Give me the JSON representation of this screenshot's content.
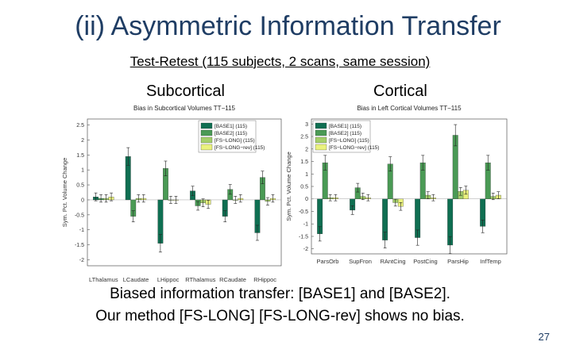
{
  "slide": {
    "title": "(ii) Asymmetric Information Transfer",
    "subtitle": "Test-Retest (115 subjects, 2 scans, same session)",
    "left_heading": "Subcortical",
    "right_heading": "Cortical",
    "caption_line1": "Biased information transfer: [BASE1] and [BASE2].",
    "caption_line2": "Our method [FS-LONG] [FS-LONG-rev] shows no bias.",
    "page_number": "27"
  },
  "chart_data": [
    {
      "type": "bar",
      "title": "Bias in Subcortical Volumes TT−115",
      "ylabel": "Sym. Pct. Volume Change",
      "xlabel": "",
      "ylim": [
        -2.2,
        2.7
      ],
      "yticks": [
        -2,
        -1.5,
        -1,
        -0.5,
        0,
        0.5,
        1,
        1.5,
        2,
        2.5
      ],
      "legend_position": "top-right",
      "grid": false,
      "categories": [
        "LThalamus",
        "LCaudate",
        "LHippoc",
        "RThalamus",
        "RCaudate",
        "RHippoc"
      ],
      "series": [
        {
          "name": "[BASE1] (115)",
          "color": "#0f6f52",
          "values": [
            0.1,
            1.45,
            -1.45,
            0.3,
            -0.55,
            -1.1
          ]
        },
        {
          "name": "[BASE2] (115)",
          "color": "#4a9a55",
          "values": [
            0.05,
            -0.55,
            1.05,
            -0.2,
            0.35,
            0.75
          ]
        },
        {
          "name": "[FS−LONG] (115)",
          "color": "#a4cf6a",
          "values": [
            0.05,
            0.05,
            0.0,
            -0.1,
            0.0,
            -0.05
          ]
        },
        {
          "name": "[FS−LONG−rev] (115)",
          "color": "#eaf27e",
          "values": [
            0.1,
            0.05,
            0.0,
            -0.15,
            0.05,
            0.05
          ]
        }
      ]
    },
    {
      "type": "bar",
      "title": "Bias in Left Cortical Volumes TT−115",
      "ylabel": "Sym. Pct. Volume Change",
      "xlabel": "",
      "ylim": [
        -2.2,
        3.2
      ],
      "yticks": [
        -2,
        -1.5,
        -1,
        -0.5,
        0,
        0.5,
        1,
        1.5,
        2,
        2.5,
        3
      ],
      "legend_position": "top-left",
      "grid": false,
      "categories": [
        "ParsOrb",
        "SupFron",
        "RAntCing",
        "PostCing",
        "ParsHip",
        "InfTemp"
      ],
      "series": [
        {
          "name": "[BASE1] (115)",
          "color": "#0f6f52",
          "values": [
            -1.4,
            -0.45,
            -1.65,
            -1.55,
            -1.85,
            -1.1
          ]
        },
        {
          "name": "[BASE2] (115)",
          "color": "#4a9a55",
          "values": [
            1.45,
            0.45,
            1.4,
            1.45,
            2.55,
            1.45
          ]
        },
        {
          "name": "[FS−LONG] (115)",
          "color": "#a4cf6a",
          "values": [
            0.05,
            0.1,
            -0.15,
            0.15,
            0.3,
            0.1
          ]
        },
        {
          "name": "[FS−LONG−rev] (115)",
          "color": "#eaf27e",
          "values": [
            0.05,
            0.05,
            -0.3,
            0.05,
            0.35,
            0.15
          ]
        }
      ]
    }
  ]
}
